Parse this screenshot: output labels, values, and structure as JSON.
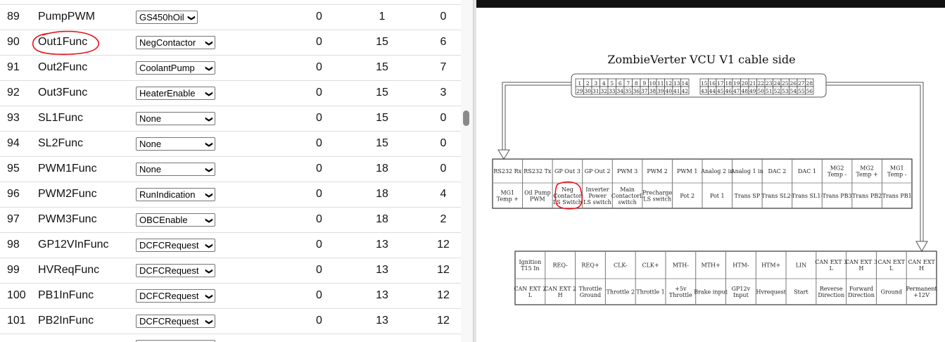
{
  "params": [
    {
      "num": "89",
      "name": "PumpPWM",
      "value": "GS450hOil",
      "min": "0",
      "max": "1",
      "default": "0"
    },
    {
      "num": "90",
      "name": "Out1Func",
      "value": "NegContactor",
      "min": "0",
      "max": "15",
      "default": "6"
    },
    {
      "num": "91",
      "name": "Out2Func",
      "value": "CoolantPump",
      "min": "0",
      "max": "15",
      "default": "7"
    },
    {
      "num": "92",
      "name": "Out3Func",
      "value": "HeaterEnable",
      "min": "0",
      "max": "15",
      "default": "3"
    },
    {
      "num": "93",
      "name": "SL1Func",
      "value": "None",
      "min": "0",
      "max": "15",
      "default": "0"
    },
    {
      "num": "94",
      "name": "SL2Func",
      "value": "None",
      "min": "0",
      "max": "15",
      "default": "0"
    },
    {
      "num": "95",
      "name": "PWM1Func",
      "value": "None",
      "min": "0",
      "max": "18",
      "default": "0"
    },
    {
      "num": "96",
      "name": "PWM2Func",
      "value": "RunIndication",
      "min": "0",
      "max": "18",
      "default": "4"
    },
    {
      "num": "97",
      "name": "PWM3Func",
      "value": "OBCEnable",
      "min": "0",
      "max": "18",
      "default": "2"
    },
    {
      "num": "98",
      "name": "GP12VInFunc",
      "value": "DCFCRequest",
      "min": "0",
      "max": "13",
      "default": "12"
    },
    {
      "num": "99",
      "name": "HVReqFunc",
      "value": "DCFCRequest",
      "min": "0",
      "max": "13",
      "default": "12"
    },
    {
      "num": "100",
      "name": "PB1InFunc",
      "value": "DCFCRequest",
      "min": "0",
      "max": "13",
      "default": "12"
    },
    {
      "num": "101",
      "name": "PB2InFunc",
      "value": "DCFCRequest",
      "min": "0",
      "max": "13",
      "default": "12"
    }
  ],
  "diagram": {
    "title": "ZombieVerter VCU V1 cable side",
    "pins_left_top": [
      "1",
      "2",
      "3",
      "4",
      "5",
      "6",
      "7",
      "8",
      "9",
      "10",
      "11",
      "12",
      "13",
      "14"
    ],
    "pins_left_bottom": [
      "29",
      "30",
      "31",
      "32",
      "33",
      "34",
      "35",
      "36",
      "37",
      "38",
      "39",
      "40",
      "41",
      "42"
    ],
    "pins_right_top": [
      "15",
      "16",
      "17",
      "18",
      "19",
      "20",
      "21",
      "22",
      "23",
      "24",
      "25",
      "26",
      "27",
      "28"
    ],
    "pins_right_bottom": [
      "43",
      "44",
      "45",
      "46",
      "47",
      "48",
      "49",
      "50",
      "51",
      "52",
      "53",
      "54",
      "55",
      "56"
    ],
    "upper_top": [
      "RS232 Rx",
      "RS232 Tx",
      "GP Out 3",
      "GP Out 2",
      "PWM 3",
      "PWM 2",
      "PWM 1",
      "Analog 2 in",
      "Analog 1 in",
      "DAC 2",
      "DAC 1",
      "MG2\nTemp -",
      "MG2\nTemp +",
      "MG1\nTemp -"
    ],
    "upper_bottom": [
      "MG1\nTemp +",
      "Oil Pump\nPWM",
      "Neg\nContactor\nLS Switch",
      "Inverter\nPower\nLS switch",
      "Main\nContactorL\nswitch",
      "Precharge\nLS switch",
      "Pot 2",
      "Pot 1",
      "Trans SP",
      "Trans SL2-",
      "Trans SL1-",
      "Trans PB3",
      "Trans PB2",
      "Trans PB1"
    ],
    "lower_top": [
      "Ignition\nT15 In",
      "REQ-",
      "REQ+",
      "CLK-",
      "CLK+",
      "MTH-",
      "MTH+",
      "HTM-",
      "HTM+",
      "LIN",
      "CAN EXT 3\nL",
      "CAN EXT 3\nH",
      "CAN EXT\nL",
      "CAN EXT\nH"
    ],
    "lower_bottom": [
      "CAN EXT 2\nL",
      "CAN EXT 2\nH",
      "Throttle\nGround",
      "Throttle 2",
      "Throttle 1",
      "+5v\nThrottle",
      "Brake input",
      "GP12v\nInput",
      "Hvrequest",
      "Start",
      "Reverse\nDirection",
      "Forward\nDirection",
      "Ground",
      "Permanent\n+12V"
    ]
  },
  "annotation_color": "#e8141b"
}
